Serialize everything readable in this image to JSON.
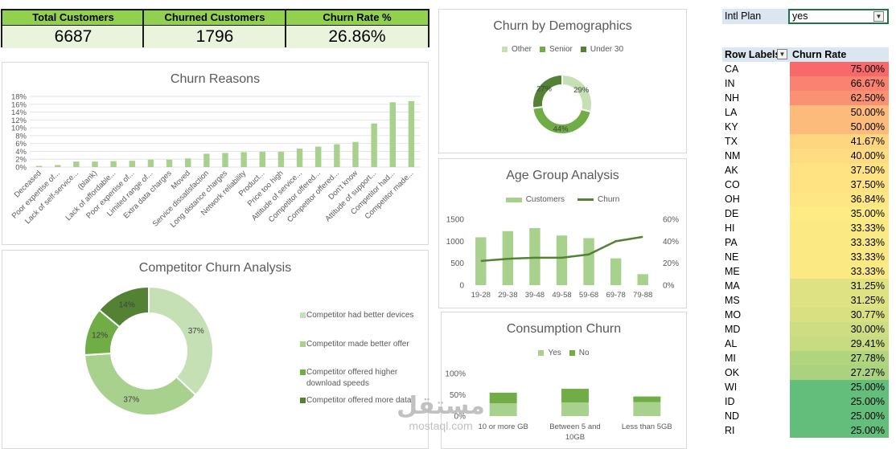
{
  "kpis": [
    {
      "label": "Total Customers",
      "value": "6687"
    },
    {
      "label": "Churned Customers",
      "value": "1796"
    },
    {
      "label": "Churn Rate %",
      "value": "26.86%"
    }
  ],
  "colors": {
    "kpi_header": "#92d050",
    "kpi_value_bg": "#eaf4dd",
    "green_light": "#a9d18e",
    "green_mid": "#70ad47",
    "green_dark": "#548235",
    "green_pale": "#c5e0b4"
  },
  "filter": {
    "label": "Intl Plan",
    "value": "yes"
  },
  "pivot": {
    "header_label": "Row Labels",
    "header_value": "Churn Rate",
    "rows": [
      {
        "state": "CA",
        "rate": "75.00%",
        "color": "#f8696b"
      },
      {
        "state": "IN",
        "rate": "66.67%",
        "color": "#f98370"
      },
      {
        "state": "NH",
        "rate": "62.50%",
        "color": "#fa9173"
      },
      {
        "state": "LA",
        "rate": "50.00%",
        "color": "#fdbb7b"
      },
      {
        "state": "KY",
        "rate": "50.00%",
        "color": "#fdbb7b"
      },
      {
        "state": "TX",
        "rate": "41.67%",
        "color": "#fed680"
      },
      {
        "state": "NM",
        "rate": "40.00%",
        "color": "#ffdb81"
      },
      {
        "state": "AK",
        "rate": "37.50%",
        "color": "#ffe383"
      },
      {
        "state": "CO",
        "rate": "37.50%",
        "color": "#ffe383"
      },
      {
        "state": "OH",
        "rate": "36.84%",
        "color": "#ffe684"
      },
      {
        "state": "DE",
        "rate": "35.00%",
        "color": "#ffeb84"
      },
      {
        "state": "HI",
        "rate": "33.33%",
        "color": "#fbea84"
      },
      {
        "state": "PA",
        "rate": "33.33%",
        "color": "#fbea84"
      },
      {
        "state": "NE",
        "rate": "33.33%",
        "color": "#fbea84"
      },
      {
        "state": "ME",
        "rate": "33.33%",
        "color": "#fbea84"
      },
      {
        "state": "MA",
        "rate": "31.25%",
        "color": "#dfe283"
      },
      {
        "state": "MS",
        "rate": "31.25%",
        "color": "#dfe283"
      },
      {
        "state": "MO",
        "rate": "30.77%",
        "color": "#d9e082"
      },
      {
        "state": "MD",
        "rate": "30.00%",
        "color": "#cfdd82"
      },
      {
        "state": "AL",
        "rate": "29.41%",
        "color": "#c7db81"
      },
      {
        "state": "MI",
        "rate": "27.78%",
        "color": "#b1d47f"
      },
      {
        "state": "OK",
        "rate": "27.27%",
        "color": "#aad27f"
      },
      {
        "state": "WI",
        "rate": "25.00%",
        "color": "#63be7b"
      },
      {
        "state": "ID",
        "rate": "25.00%",
        "color": "#63be7b"
      },
      {
        "state": "ND",
        "rate": "25.00%",
        "color": "#63be7b"
      },
      {
        "state": "RI",
        "rate": "25.00%",
        "color": "#63be7b"
      }
    ]
  },
  "watermark": {
    "arabic": "مستقل",
    "latin": "mostaql.com"
  },
  "chart_data": [
    {
      "id": "churn_reasons",
      "type": "bar",
      "title": "Churn Reasons",
      "categories": [
        "Deceased",
        "Poor expertise of...",
        "Lack of self-service...",
        "(blank)",
        "Lack of affordable...",
        "Poor expertise of...",
        "Limited range of...",
        "Extra data charges",
        "Moved",
        "Service dissatisfaction",
        "Long distance charges",
        "Network reliability",
        "Product...",
        "Price too high",
        "Attitude of service...",
        "Competitor offered...",
        "Competitor offered...",
        "Don't know",
        "Attitude of support...",
        "Competitor had...",
        "Competitor made..."
      ],
      "values": [
        0.003,
        0.005,
        0.014,
        0.014,
        0.015,
        0.016,
        0.019,
        0.019,
        0.022,
        0.034,
        0.036,
        0.038,
        0.039,
        0.039,
        0.047,
        0.052,
        0.058,
        0.064,
        0.111,
        0.165,
        0.168
      ],
      "yticks": [
        "0%",
        "2%",
        "4%",
        "6%",
        "8%",
        "10%",
        "12%",
        "14%",
        "16%",
        "18%"
      ],
      "ylim": [
        0,
        0.18
      ]
    },
    {
      "id": "demographics",
      "type": "pie",
      "title": "Churn by Demographics",
      "series": [
        {
          "name": "Other",
          "value": 29,
          "label": "29%"
        },
        {
          "name": "Senior",
          "value": 44,
          "label": "44%"
        },
        {
          "name": "Under 30",
          "value": 27,
          "label": "27%"
        }
      ],
      "legend": "top"
    },
    {
      "id": "age_group",
      "type": "bar",
      "title": "Age Group Analysis",
      "categories": [
        "19-28",
        "29-38",
        "39-48",
        "49-58",
        "59-68",
        "69-78",
        "79-88"
      ],
      "series": [
        {
          "name": "Customers",
          "type": "bar",
          "values": [
            1090,
            1230,
            1300,
            1130,
            1070,
            610,
            250
          ]
        },
        {
          "name": "Churn",
          "type": "line",
          "axis": "right",
          "values": [
            0.22,
            0.24,
            0.25,
            0.25,
            0.28,
            0.4,
            0.44
          ]
        }
      ],
      "yticks_left": [
        "0",
        "500",
        "1000",
        "1500"
      ],
      "ylim_left": [
        0,
        1500
      ],
      "yticks_right": [
        "0%",
        "20%",
        "40%",
        "60%"
      ],
      "ylim_right": [
        0,
        0.6
      ],
      "legend": "top"
    },
    {
      "id": "competitor",
      "type": "pie",
      "title": "Competitor Churn Analysis",
      "series": [
        {
          "name": "Competitor had better devices",
          "value": 37,
          "label": "37%"
        },
        {
          "name": "Competitor made better offer",
          "value": 37,
          "label": "37%"
        },
        {
          "name": "Competitor offered higher download speeds",
          "value": 12,
          "label": "12%"
        },
        {
          "name": "Competitor offered more data",
          "value": 14,
          "label": "14%"
        }
      ],
      "legend": "right"
    },
    {
      "id": "consumption",
      "type": "bar",
      "title": "Consumption Churn",
      "categories": [
        "10 or more GB",
        "Between 5 and 10GB",
        "Less than 5GB"
      ],
      "series": [
        {
          "name": "Yes",
          "values": [
            0.3,
            0.32,
            0.33
          ]
        },
        {
          "name": "No",
          "values": [
            0.25,
            0.32,
            0.13
          ]
        }
      ],
      "stacked": true,
      "yticks": [
        "0%",
        "50%",
        "100%"
      ],
      "ylim": [
        0,
        1
      ],
      "legend": "top"
    }
  ]
}
